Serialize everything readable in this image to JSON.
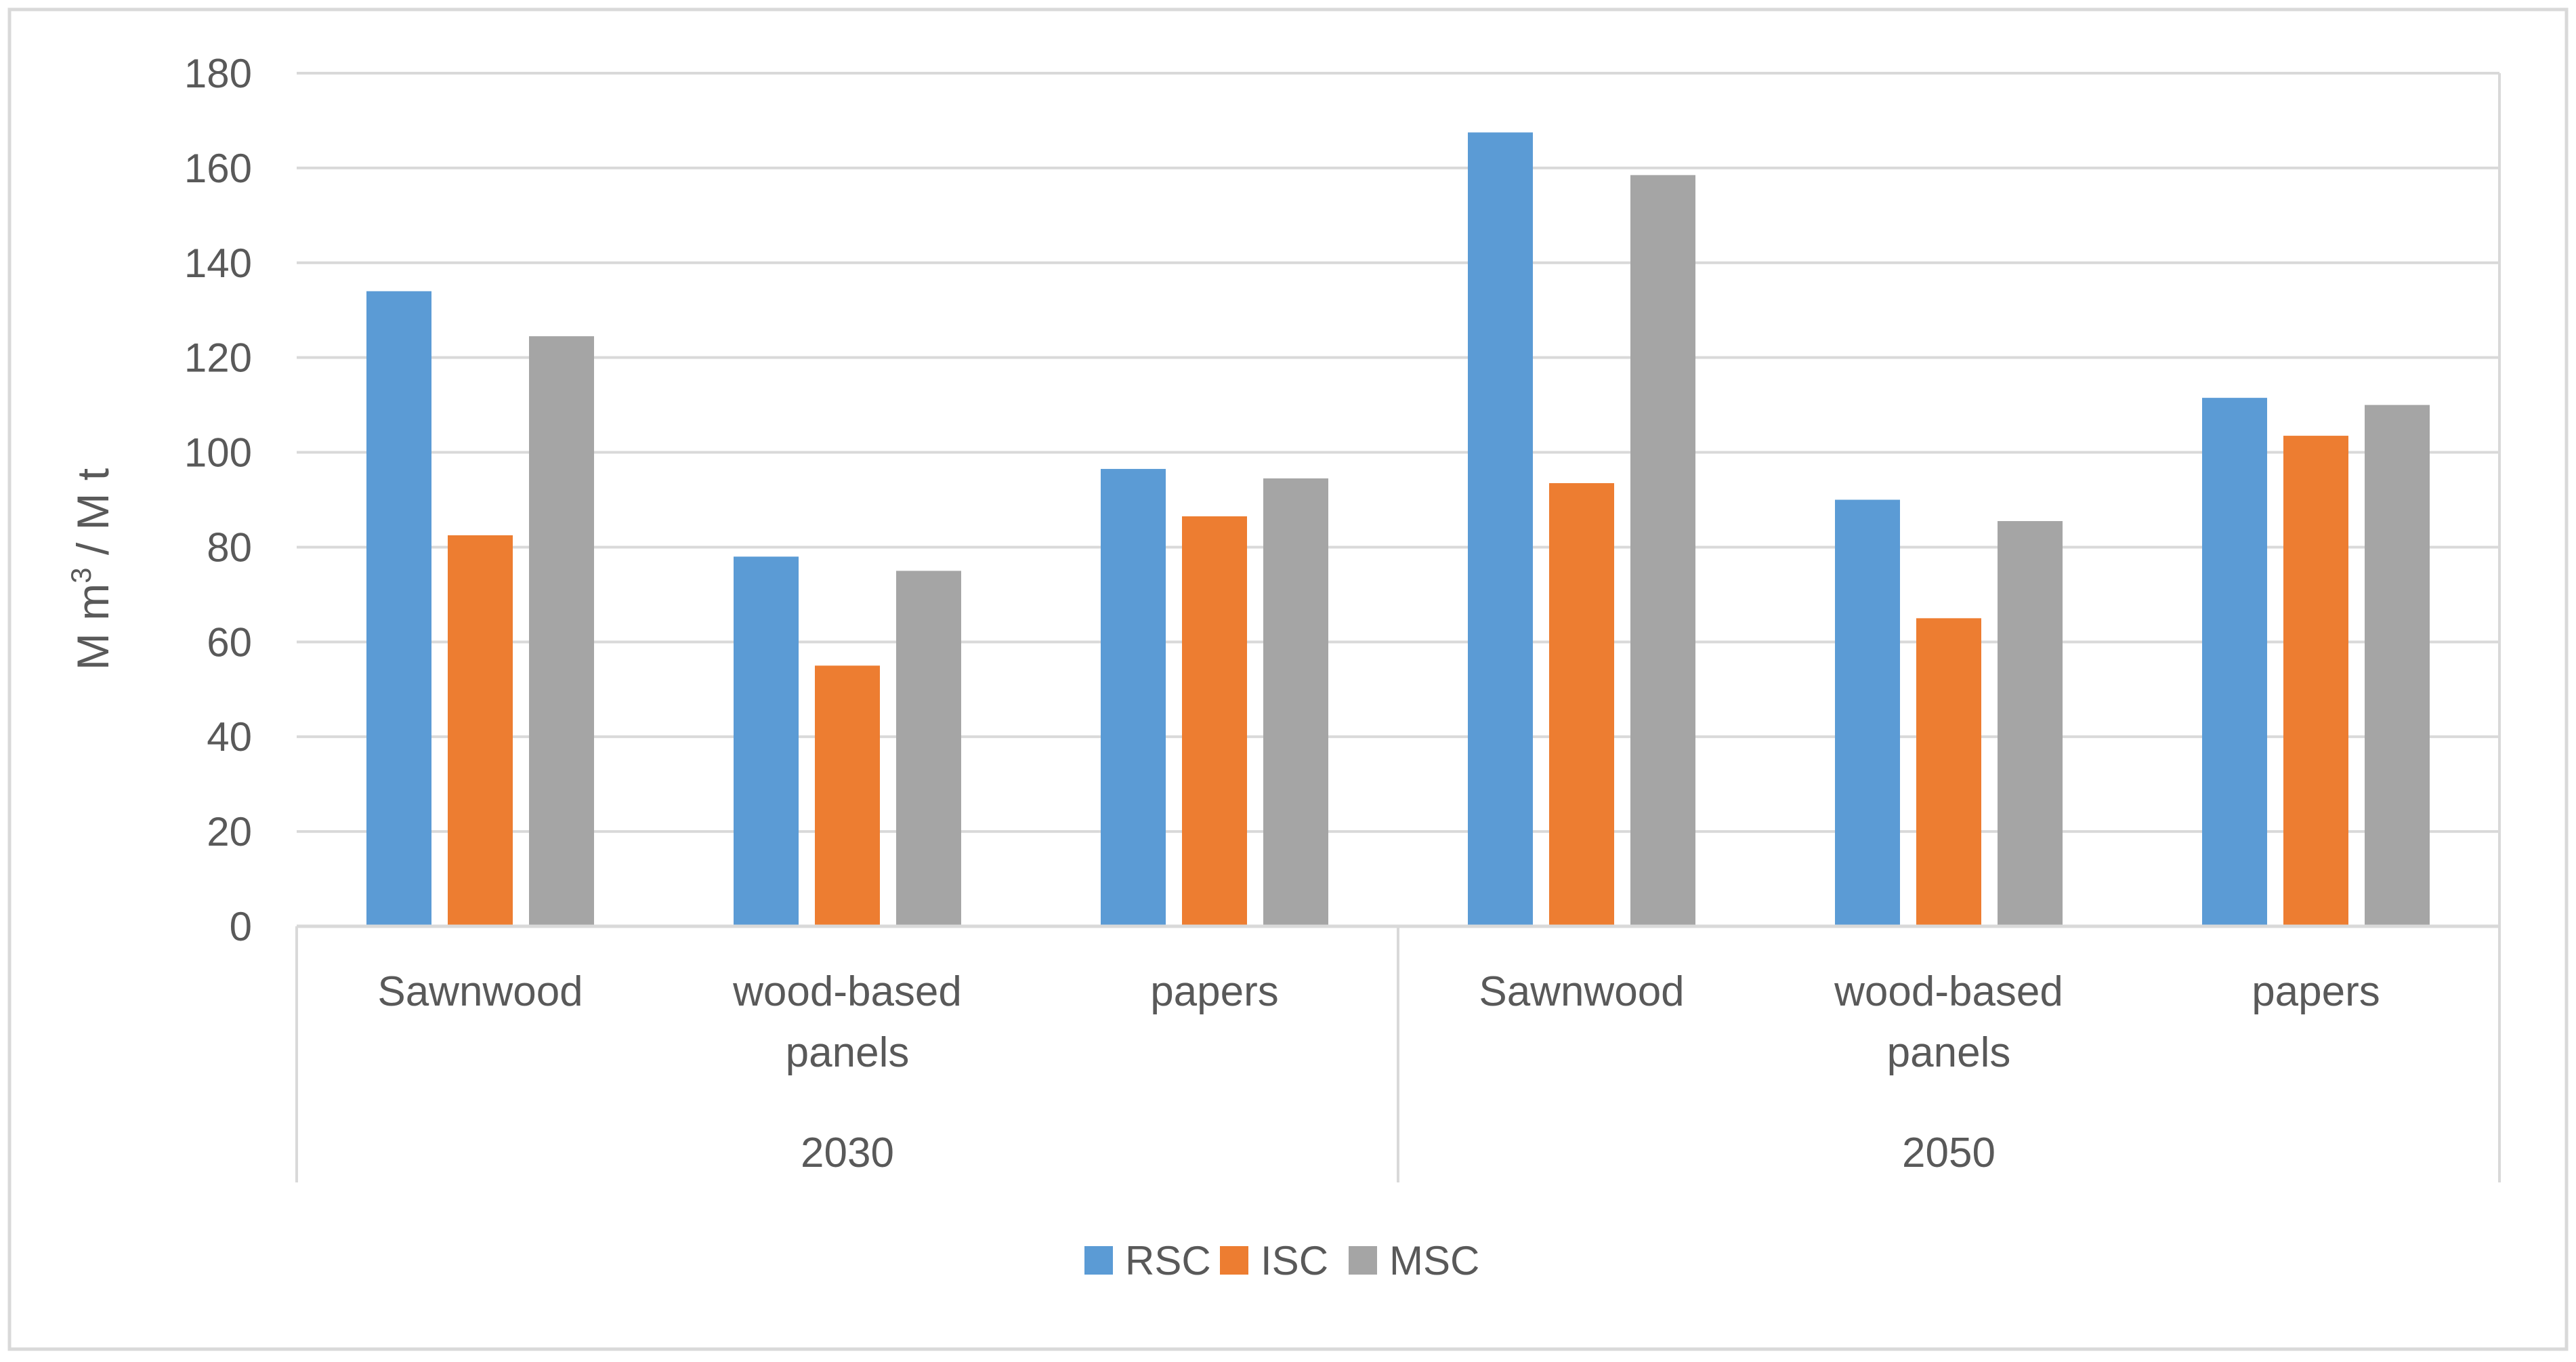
{
  "chart_data": {
    "type": "bar",
    "title": "",
    "xlabel": "",
    "ylabel": {
      "prefix": "M m",
      "superscript": "3",
      "suffix": " / M t"
    },
    "ylim": [
      0,
      180
    ],
    "yticks": [
      "0",
      "20",
      "40",
      "60",
      "80",
      "100",
      "120",
      "140",
      "160",
      "180"
    ],
    "grid": true,
    "legend_position": "bottom",
    "groups": [
      {
        "label": "2030",
        "categories": [
          {
            "lines": [
              "Sawnwood"
            ]
          },
          {
            "lines": [
              "wood-based",
              "panels"
            ]
          },
          {
            "lines": [
              "papers"
            ]
          }
        ]
      },
      {
        "label": "2050",
        "categories": [
          {
            "lines": [
              "Sawnwood"
            ]
          },
          {
            "lines": [
              "wood-based",
              "panels"
            ]
          },
          {
            "lines": [
              "papers"
            ]
          }
        ]
      }
    ],
    "series": [
      {
        "name": "RSC",
        "color": "#5B9BD5",
        "values": [
          134,
          78,
          96.5,
          167.5,
          90,
          111.5
        ]
      },
      {
        "name": "ISC",
        "color": "#ED7D31",
        "values": [
          82.5,
          55,
          86.5,
          93.5,
          65,
          103.5
        ]
      },
      {
        "name": "MSC",
        "color": "#A5A5A5",
        "values": [
          124.5,
          75,
          94.5,
          158.5,
          85.5,
          110
        ]
      }
    ],
    "colors": {
      "gridline": "#D9D9D9",
      "text": "#595959",
      "frame": "#D9D9D9"
    }
  }
}
